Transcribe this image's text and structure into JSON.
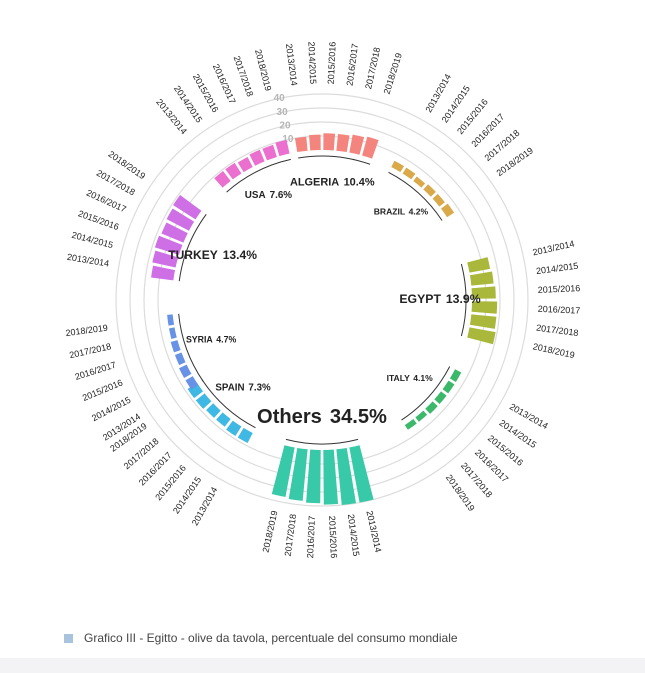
{
  "chart_data": {
    "type": "radial-bar",
    "categories": [
      "ALGERIA",
      "BRAZIL",
      "EGYPT",
      "ITALY",
      "Others",
      "SPAIN",
      "SYRIA",
      "TURKEY",
      "USA"
    ],
    "values": [
      10.4,
      4.2,
      13.9,
      4.1,
      34.5,
      7.3,
      4.7,
      13.4,
      7.6
    ],
    "value_labels": [
      "10.4%",
      "4.2%",
      "13.9%",
      "4.1%",
      "34.5%",
      "7.3%",
      "4.7%",
      "13.4%",
      "7.6%"
    ],
    "colors": [
      "#f4857e",
      "#d9a94a",
      "#a9b83a",
      "#3bb86a",
      "#37c9a8",
      "#3fb9e3",
      "#6792e6",
      "#cf6fe6",
      "#ea6fcf"
    ],
    "series": [
      {
        "name": "2013/2014",
        "values": [
          10,
          5,
          15,
          5,
          40,
          8,
          6,
          16,
          9
        ]
      },
      {
        "name": "2014/2015",
        "values": [
          11,
          5,
          16,
          5,
          40,
          8,
          6,
          17,
          9
        ]
      },
      {
        "name": "2015/2016",
        "values": [
          12,
          4,
          17,
          5,
          39,
          7,
          5,
          18,
          8
        ]
      },
      {
        "name": "2016/2017",
        "values": [
          12,
          5,
          18,
          5,
          38,
          7,
          5,
          17,
          9
        ]
      },
      {
        "name": "2017/2018",
        "values": [
          13,
          5,
          18,
          4,
          37,
          8,
          4,
          18,
          9
        ]
      },
      {
        "name": "2018/2019",
        "values": [
          14,
          6,
          19,
          4,
          36,
          8,
          4,
          19,
          10
        ]
      }
    ],
    "ylim": [
      0,
      40
    ],
    "yticks": [
      10,
      20,
      30,
      40
    ],
    "grid": true,
    "caption": "Grafico III - Egitto - olive da tavola, percentuale del consumo mondiale"
  }
}
